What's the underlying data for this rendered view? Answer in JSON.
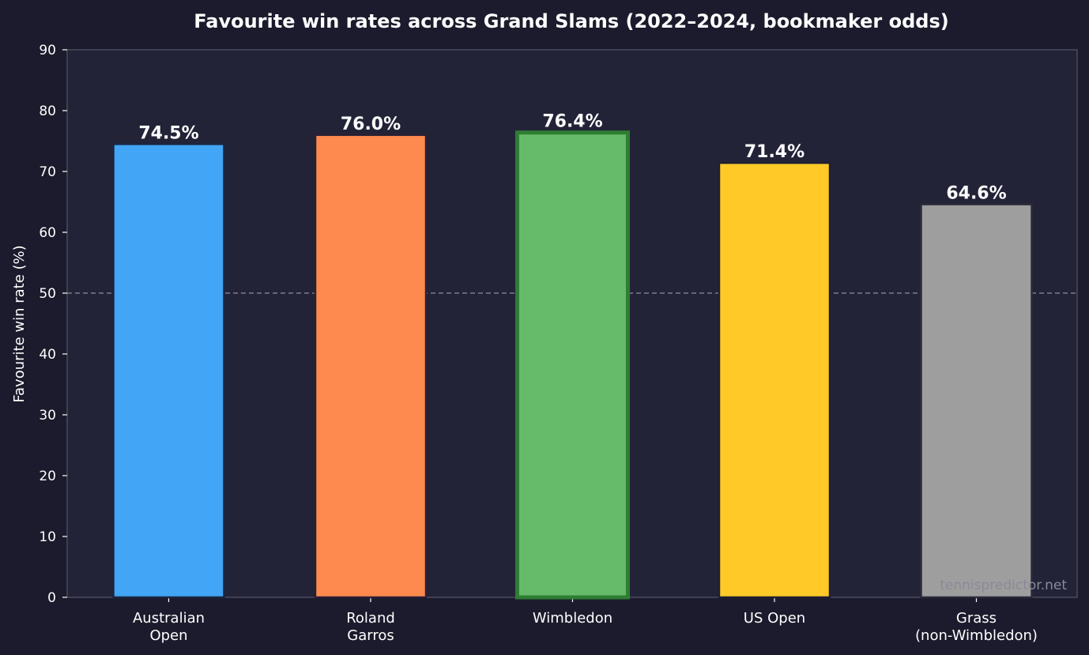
{
  "chart_data": {
    "type": "bar",
    "title": "Favourite win rates across Grand Slams (2022–2024, bookmaker odds)",
    "xlabel": "",
    "ylabel": "Favourite win rate (%)",
    "ylim": [
      0,
      90
    ],
    "yticks": [
      "0",
      "10",
      "20",
      "30",
      "40",
      "50",
      "60",
      "70",
      "80",
      "90"
    ],
    "categories": [
      [
        "Australian",
        "Open"
      ],
      [
        "Roland",
        "Garros"
      ],
      [
        "Wimbledon"
      ],
      [
        "US Open"
      ],
      [
        "Grass",
        "(non-Wimbledon)"
      ]
    ],
    "values": [
      74.5,
      76.0,
      76.4,
      71.4,
      64.6
    ],
    "value_labels": [
      "74.5%",
      "76.0%",
      "76.4%",
      "71.4%",
      "64.6%"
    ],
    "bar_colors": [
      "#42a5f5",
      "#ff8a50",
      "#66bb6a",
      "#ffca28",
      "#9e9e9e"
    ],
    "bar_edge_colors": [
      "#1b2540",
      "#2a2035",
      "#2e7d32",
      "#1f1f30",
      "#2a2a3a"
    ],
    "highlighted_category": "Wimbledon",
    "reference_line": {
      "y": 50,
      "style": "dashed"
    },
    "grid": false,
    "legend": "none",
    "watermark": "tennispredictor.net",
    "colors": {
      "page_background": "#1b1b2d",
      "plot_background": "#232338",
      "axis_spine": "#4a4a5c",
      "text": "#ffffff",
      "reference_line": "#7a7a90",
      "watermark": "#8a8a99"
    }
  }
}
